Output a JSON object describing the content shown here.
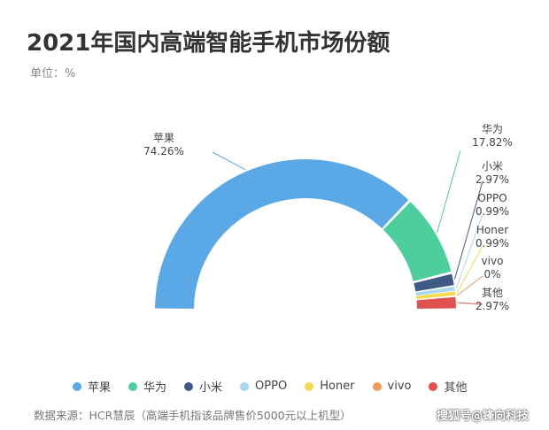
{
  "header": {
    "title": "2021年国内高端智能手机市场份额",
    "unit": "单位：%"
  },
  "footer": {
    "source": "数据来源：HCR慧辰（高端手机指该品牌售价5000元以上机型）",
    "watermark": "搜狐号@锋向科技"
  },
  "chart_data": {
    "type": "pie",
    "variant": "half-donut",
    "title": "2021年国内高端智能手机市场份额",
    "unit": "%",
    "legend_placement": "bottom",
    "categories": [
      "苹果",
      "华为",
      "小米",
      "OPPO",
      "Honer",
      "vivo",
      "其他"
    ],
    "values": [
      74.26,
      17.82,
      2.97,
      0.99,
      0.99,
      0,
      2.97
    ],
    "value_labels": [
      "74.26%",
      "17.82%",
      "2.97%",
      "0.99%",
      "0.99%",
      "0%",
      "2.97%"
    ],
    "colors": [
      "#5aa8e6",
      "#4ccf9c",
      "#3f5a86",
      "#a8d8f2",
      "#f5d94e",
      "#ee9a5a",
      "#e0514f"
    ]
  }
}
